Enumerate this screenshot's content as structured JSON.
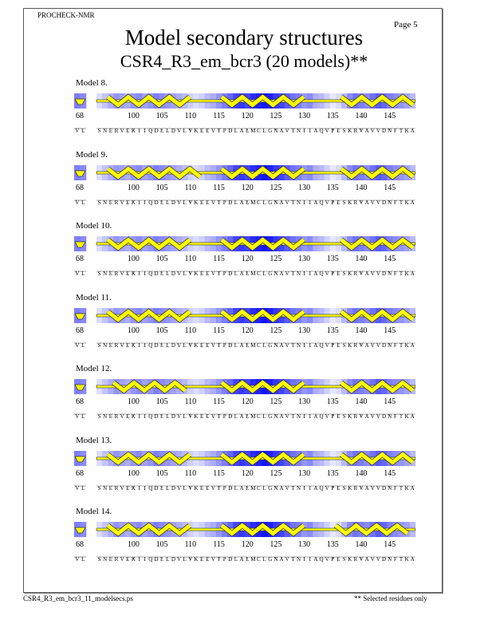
{
  "header": {
    "program": "PROCHECK-NMR",
    "page": "Page  5",
    "title": "Model secondary structures",
    "subtitle": "CSR4_R3_em_bcr3 (20 models)**"
  },
  "footer": {
    "filename": "CSR4_R3_em_bcr3_11_modelsecs.ps",
    "note": "** Selected residues only"
  },
  "colors": {
    "shade": "#1a1aff",
    "helix": "#ffff00",
    "outline": "#333333"
  },
  "fragment": {
    "start_label": "68",
    "start": 68,
    "sequence": "VL"
  },
  "main": {
    "start": 94,
    "sequence": "SNERVEKIIQDLLDVLVKEEVTPDLALMCLGNAVTNIIAQVPESKRVAVVDNFTKA",
    "tick_labels": [
      "100",
      "105",
      "110",
      "115",
      "120",
      "125",
      "130",
      "135",
      "140",
      "145"
    ]
  },
  "fragment_shading": [
    0.55,
    0.5
  ],
  "shading": [
    0.15,
    0.25,
    0.35,
    0.45,
    0.4,
    0.35,
    0.45,
    0.5,
    0.4,
    0.45,
    0.55,
    0.5,
    0.45,
    0.4,
    0.35,
    0.3,
    0.2,
    0.15,
    0.2,
    0.3,
    0.35,
    0.45,
    0.55,
    0.65,
    0.8,
    0.85,
    0.8,
    0.9,
    0.95,
    1.0,
    0.95,
    0.85,
    0.8,
    0.7,
    0.6,
    0.55,
    0.45,
    0.5,
    0.35,
    0.3,
    0.2,
    0.1,
    0.15,
    0.3,
    0.5,
    0.6,
    0.55,
    0.5,
    0.6,
    0.7,
    0.65,
    0.55,
    0.5,
    0.45,
    0.4,
    0.3
  ],
  "models": [
    {
      "label": "Model  8.",
      "helices": [
        [
          96,
          110
        ],
        [
          116,
          131
        ],
        [
          137,
          149
        ]
      ]
    },
    {
      "label": "Model  9.",
      "helices": [
        [
          96,
          112
        ],
        [
          116,
          130
        ],
        [
          137,
          149
        ]
      ]
    },
    {
      "label": "Model 10.",
      "helices": [
        [
          96,
          110
        ],
        [
          116,
          130
        ],
        [
          137,
          149
        ]
      ]
    },
    {
      "label": "Model 11.",
      "helices": [
        [
          96,
          110
        ],
        [
          116,
          131
        ],
        [
          137,
          149
        ]
      ]
    },
    {
      "label": "Model 12.",
      "helices": [
        [
          97,
          110
        ],
        [
          116,
          131
        ],
        [
          137,
          149
        ]
      ]
    },
    {
      "label": "Model 13.",
      "helices": [
        [
          96,
          111
        ],
        [
          116,
          131
        ],
        [
          137,
          149
        ]
      ]
    },
    {
      "label": "Model 14.",
      "helices": [
        [
          96,
          110
        ],
        [
          116,
          130
        ],
        [
          136,
          149
        ]
      ]
    }
  ]
}
